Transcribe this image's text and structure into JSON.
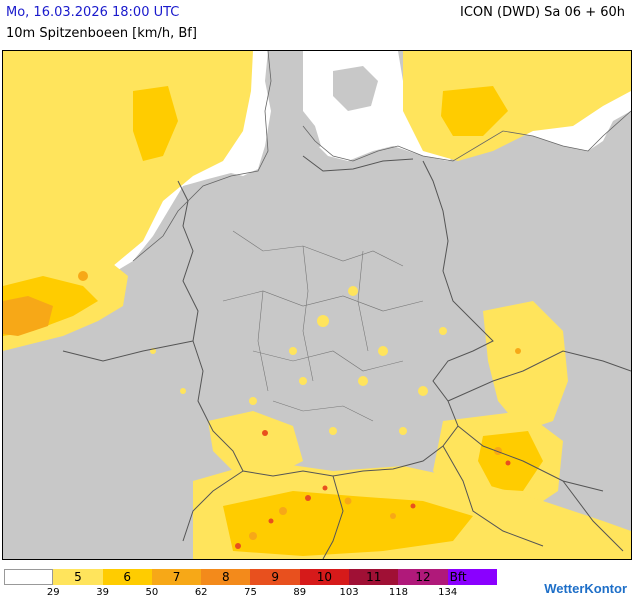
{
  "header": {
    "datetime": "Mo, 16.03.2026 18:00 UTC",
    "model": "ICON (DWD) Sa 06 + 60h",
    "parameter": "10m Spitzenboeen [km/h, Bf]"
  },
  "legend": {
    "bins": [
      {
        "label": "",
        "color": "#ffffff"
      },
      {
        "label": "5",
        "color": "#ffe45c"
      },
      {
        "label": "6",
        "color": "#ffcc00"
      },
      {
        "label": "7",
        "color": "#f7a817"
      },
      {
        "label": "8",
        "color": "#f38a1b"
      },
      {
        "label": "9",
        "color": "#e8501e"
      },
      {
        "label": "10",
        "color": "#d61a1a"
      },
      {
        "label": "11",
        "color": "#a01035"
      },
      {
        "label": "12",
        "color": "#b0197a"
      },
      {
        "label": "Bft",
        "color": "#8a00ff"
      }
    ],
    "ticks": [
      "29",
      "39",
      "50",
      "62",
      "75",
      "89",
      "103",
      "118",
      "134"
    ]
  },
  "brand": {
    "name": "WetterKontor",
    "icon": "globe-icon"
  },
  "map": {
    "land_color": "#c8c8c8",
    "sea_color": "#ffffff",
    "gust_colors": [
      "#ffe45c",
      "#ffcc00",
      "#f7a817",
      "#e8501e"
    ]
  }
}
